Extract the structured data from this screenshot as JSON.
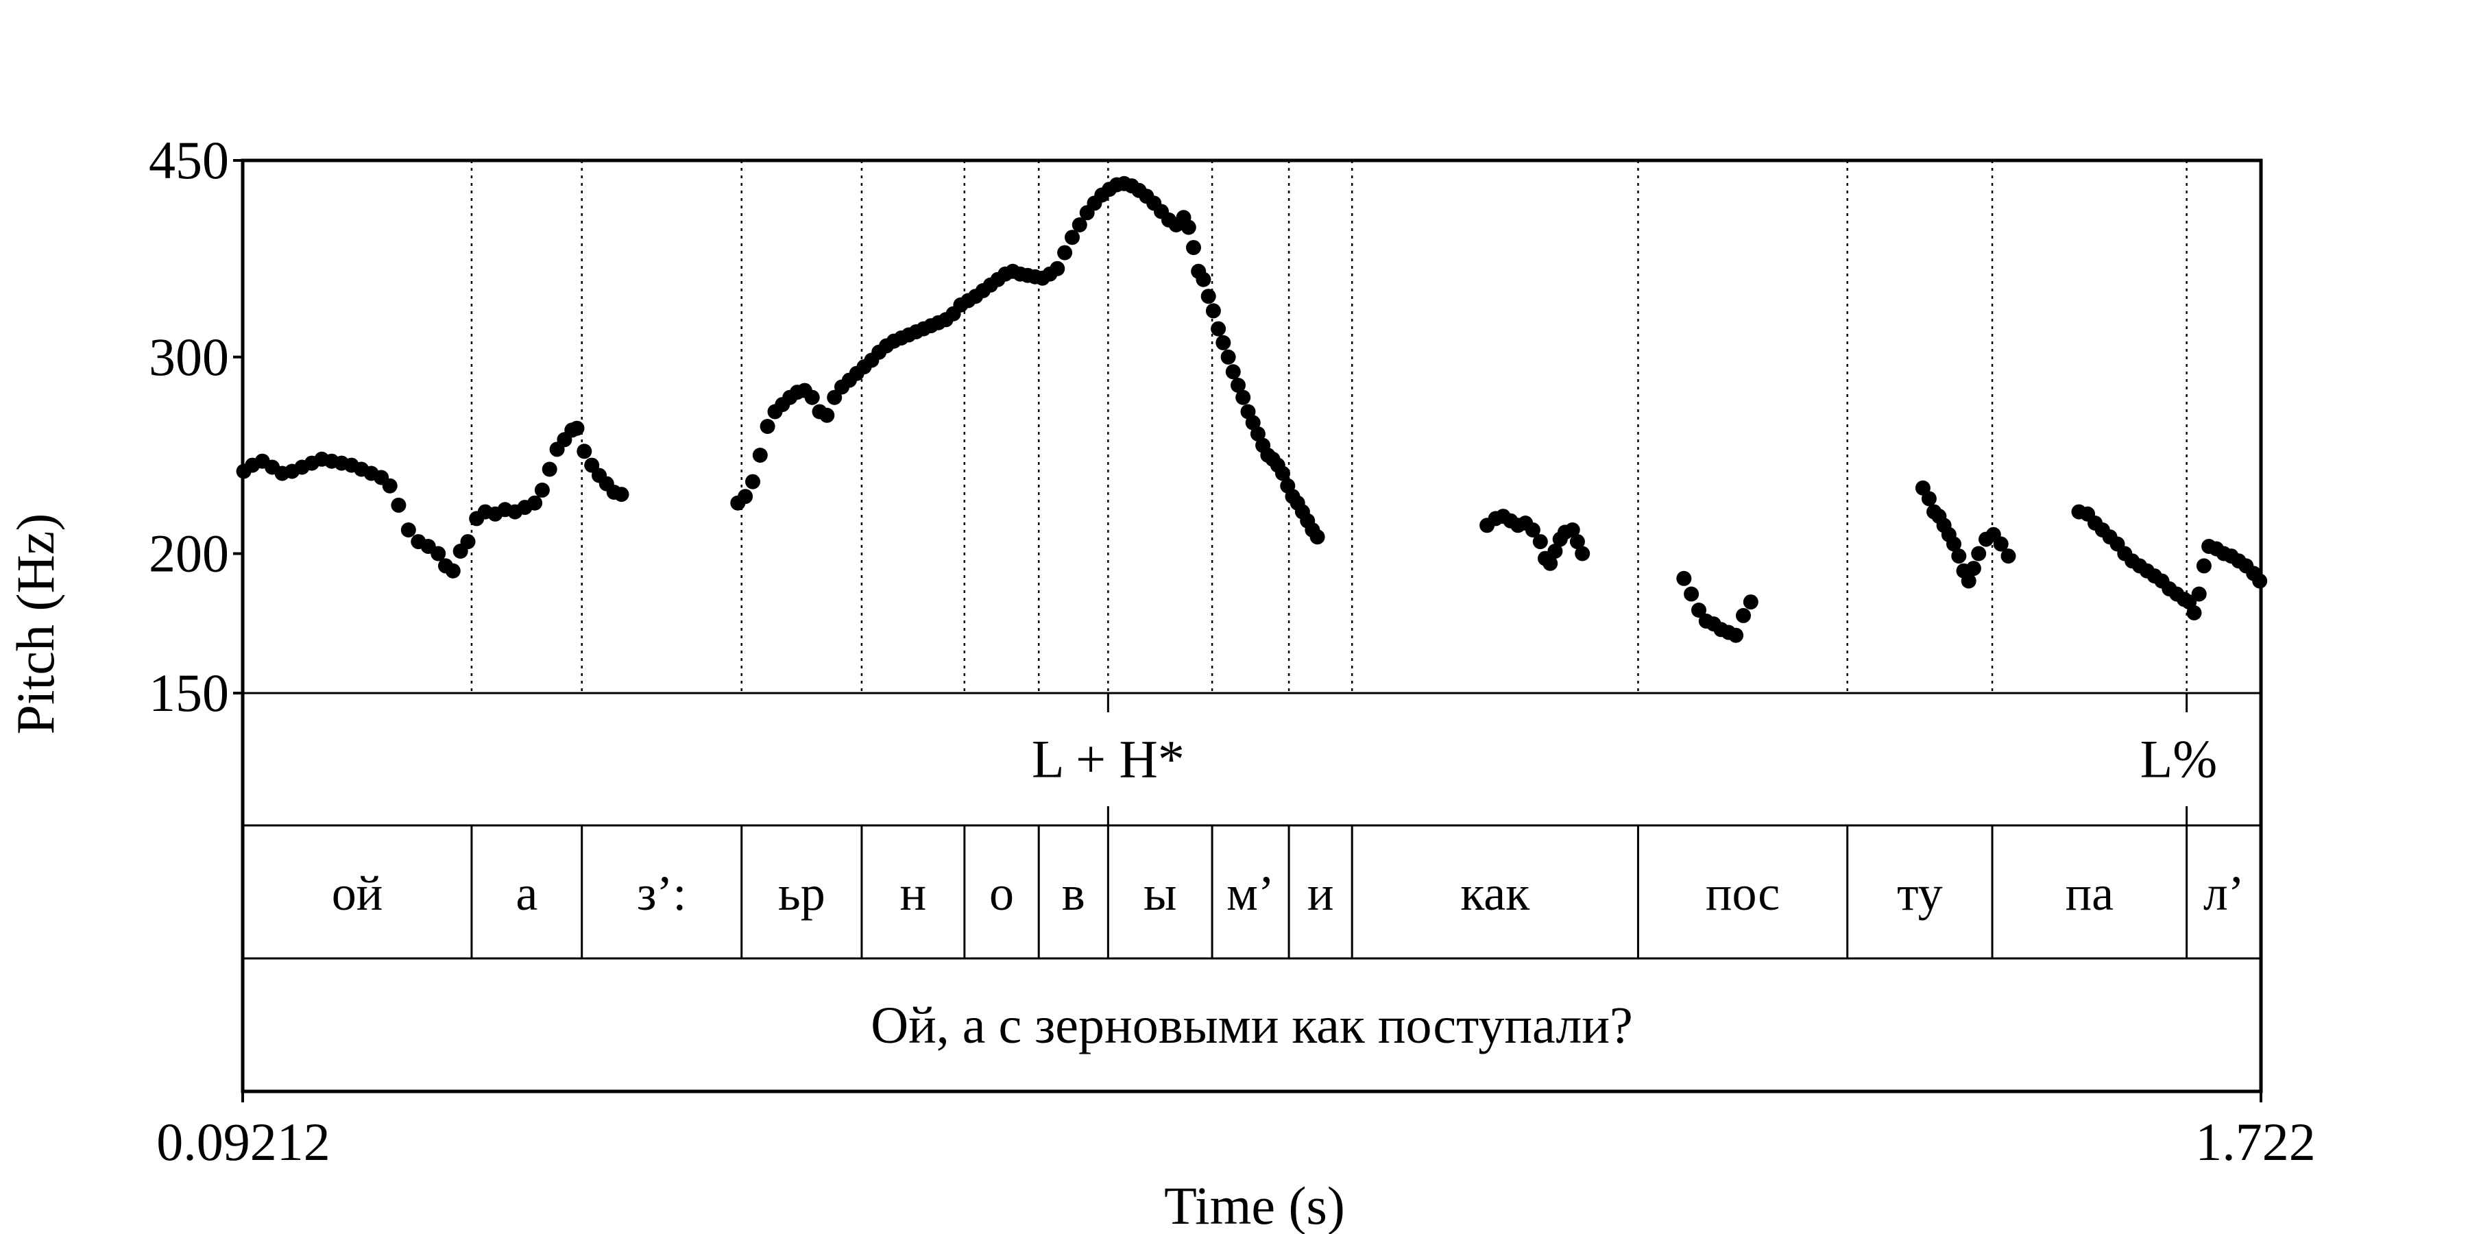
{
  "chart_data": {
    "type": "scatter",
    "xlabel": "Time (s)",
    "ylabel": "Pitch (Hz)",
    "xlim": [
      0.09212,
      1.722
    ],
    "ylim": [
      150,
      450
    ],
    "y_scale": "log",
    "x_tick_labels": [
      "0.09212",
      "1.722"
    ],
    "y_ticks": [
      150,
      200,
      300,
      450
    ],
    "tone_tier": [
      {
        "label": "L + H*",
        "time": 0.791
      },
      {
        "label": "L%",
        "time": 1.662
      }
    ],
    "segment_boundaries": [
      0.277,
      0.366,
      0.495,
      0.592,
      0.675,
      0.735,
      0.791,
      0.875,
      0.937,
      0.988,
      1.219,
      1.388,
      1.505,
      1.662
    ],
    "segments": [
      {
        "label": "ой",
        "start": 0.09212,
        "end": 0.277
      },
      {
        "label": "а",
        "start": 0.277,
        "end": 0.366
      },
      {
        "label": "з’:",
        "start": 0.366,
        "end": 0.495
      },
      {
        "label": "ьр",
        "start": 0.495,
        "end": 0.592
      },
      {
        "label": "н",
        "start": 0.592,
        "end": 0.675
      },
      {
        "label": "о",
        "start": 0.675,
        "end": 0.735
      },
      {
        "label": "в",
        "start": 0.735,
        "end": 0.791
      },
      {
        "label": "ы",
        "start": 0.791,
        "end": 0.875
      },
      {
        "label": "м’",
        "start": 0.875,
        "end": 0.937
      },
      {
        "label": "и",
        "start": 0.937,
        "end": 0.988
      },
      {
        "label": "как",
        "start": 0.988,
        "end": 1.219
      },
      {
        "label": "пос",
        "start": 1.219,
        "end": 1.388
      },
      {
        "label": "ту",
        "start": 1.388,
        "end": 1.505
      },
      {
        "label": "па",
        "start": 1.505,
        "end": 1.662
      },
      {
        "label": "л’",
        "start": 1.662,
        "end": 1.722
      }
    ],
    "sentence": "Ой, а с зерновыми как поступали?",
    "series": [
      {
        "points": [
          [
            0.093,
            237
          ],
          [
            0.1,
            240
          ],
          [
            0.108,
            242
          ],
          [
            0.116,
            239
          ],
          [
            0.124,
            236
          ],
          [
            0.132,
            237
          ],
          [
            0.14,
            239
          ],
          [
            0.148,
            241
          ],
          [
            0.156,
            243
          ],
          [
            0.164,
            242
          ],
          [
            0.172,
            241
          ],
          [
            0.18,
            240
          ],
          [
            0.188,
            238
          ],
          [
            0.196,
            236
          ],
          [
            0.204,
            234
          ],
          [
            0.211,
            230
          ],
          [
            0.218,
            221
          ],
          [
            0.226,
            210
          ],
          [
            0.234,
            205
          ],
          [
            0.242,
            203
          ],
          [
            0.25,
            200
          ],
          [
            0.256,
            195
          ],
          [
            0.262,
            193
          ],
          [
            0.268,
            201
          ],
          [
            0.274,
            205
          ],
          [
            0.281,
            215
          ],
          [
            0.288,
            218
          ],
          [
            0.296,
            217
          ],
          [
            0.304,
            219
          ],
          [
            0.312,
            218
          ],
          [
            0.32,
            220
          ],
          [
            0.328,
            222
          ],
          [
            0.334,
            228
          ],
          [
            0.34,
            238
          ],
          [
            0.346,
            248
          ],
          [
            0.352,
            253
          ],
          [
            0.358,
            258
          ],
          [
            0.362,
            259
          ],
          [
            0.368,
            247
          ],
          [
            0.374,
            240
          ],
          [
            0.38,
            235
          ],
          [
            0.386,
            231
          ],
          [
            0.392,
            227
          ],
          [
            0.398,
            226
          ],
          [
            0.492,
            222
          ],
          [
            0.498,
            225
          ],
          [
            0.504,
            232
          ],
          [
            0.51,
            245
          ],
          [
            0.516,
            260
          ],
          [
            0.522,
            268
          ],
          [
            0.528,
            272
          ],
          [
            0.534,
            276
          ],
          [
            0.54,
            279
          ],
          [
            0.546,
            280
          ],
          [
            0.552,
            276
          ],
          [
            0.558,
            268
          ],
          [
            0.564,
            266
          ],
          [
            0.57,
            276
          ],
          [
            0.576,
            282
          ],
          [
            0.582,
            286
          ],
          [
            0.588,
            290
          ],
          [
            0.594,
            294
          ],
          [
            0.6,
            298
          ],
          [
            0.606,
            303
          ],
          [
            0.612,
            307
          ],
          [
            0.618,
            310
          ],
          [
            0.624,
            312
          ],
          [
            0.63,
            314
          ],
          [
            0.636,
            316
          ],
          [
            0.642,
            318
          ],
          [
            0.648,
            320
          ],
          [
            0.654,
            322
          ],
          [
            0.66,
            324
          ],
          [
            0.666,
            328
          ],
          [
            0.672,
            334
          ],
          [
            0.678,
            337
          ],
          [
            0.684,
            340
          ],
          [
            0.69,
            344
          ],
          [
            0.696,
            348
          ],
          [
            0.702,
            352
          ],
          [
            0.708,
            356
          ],
          [
            0.714,
            358
          ],
          [
            0.72,
            356
          ],
          [
            0.726,
            355
          ],
          [
            0.732,
            354
          ],
          [
            0.738,
            353
          ],
          [
            0.744,
            356
          ],
          [
            0.75,
            360
          ],
          [
            0.756,
            372
          ],
          [
            0.762,
            384
          ],
          [
            0.768,
            394
          ],
          [
            0.774,
            404
          ],
          [
            0.78,
            412
          ],
          [
            0.786,
            419
          ],
          [
            0.792,
            424
          ],
          [
            0.798,
            428
          ],
          [
            0.804,
            429
          ],
          [
            0.81,
            427
          ],
          [
            0.816,
            423
          ],
          [
            0.822,
            418
          ],
          [
            0.828,
            412
          ],
          [
            0.834,
            405
          ],
          [
            0.84,
            398
          ],
          [
            0.846,
            394
          ],
          [
            0.852,
            400
          ],
          [
            0.856,
            392
          ],
          [
            0.86,
            376
          ],
          [
            0.864,
            358
          ],
          [
            0.868,
            352
          ],
          [
            0.872,
            340
          ],
          [
            0.876,
            330
          ],
          [
            0.88,
            318
          ],
          [
            0.884,
            309
          ],
          [
            0.888,
            300
          ],
          [
            0.892,
            291
          ],
          [
            0.896,
            283
          ],
          [
            0.9,
            276
          ],
          [
            0.904,
            268
          ],
          [
            0.908,
            262
          ],
          [
            0.912,
            256
          ],
          [
            0.916,
            250
          ],
          [
            0.92,
            245
          ],
          [
            0.924,
            243
          ],
          [
            0.928,
            240
          ],
          [
            0.932,
            236
          ],
          [
            0.936,
            230
          ],
          [
            0.94,
            225
          ],
          [
            0.944,
            222
          ],
          [
            0.948,
            218
          ],
          [
            0.952,
            214
          ],
          [
            0.956,
            210
          ],
          [
            0.96,
            207
          ],
          [
            1.097,
            212
          ],
          [
            1.104,
            215
          ],
          [
            1.11,
            216
          ],
          [
            1.116,
            214
          ],
          [
            1.122,
            212
          ],
          [
            1.128,
            213
          ],
          [
            1.134,
            210
          ],
          [
            1.14,
            205
          ],
          [
            1.144,
            198
          ],
          [
            1.148,
            196
          ],
          [
            1.152,
            201
          ],
          [
            1.156,
            206
          ],
          [
            1.16,
            209
          ],
          [
            1.166,
            210
          ],
          [
            1.17,
            205
          ],
          [
            1.174,
            200
          ],
          [
            1.256,
            190
          ],
          [
            1.262,
            184
          ],
          [
            1.268,
            178
          ],
          [
            1.274,
            174
          ],
          [
            1.28,
            173
          ],
          [
            1.286,
            171
          ],
          [
            1.292,
            170
          ],
          [
            1.298,
            169
          ],
          [
            1.304,
            176
          ],
          [
            1.31,
            181
          ],
          [
            1.449,
            229
          ],
          [
            1.454,
            224
          ],
          [
            1.458,
            218
          ],
          [
            1.462,
            216
          ],
          [
            1.466,
            212
          ],
          [
            1.47,
            208
          ],
          [
            1.474,
            204
          ],
          [
            1.478,
            199
          ],
          [
            1.482,
            193
          ],
          [
            1.486,
            189
          ],
          [
            1.49,
            194
          ],
          [
            1.494,
            200
          ],
          [
            1.5,
            206
          ],
          [
            1.506,
            208
          ],
          [
            1.512,
            204
          ],
          [
            1.518,
            199
          ],
          [
            1.575,
            218
          ],
          [
            1.582,
            217
          ],
          [
            1.588,
            213
          ],
          [
            1.594,
            210
          ],
          [
            1.6,
            207
          ],
          [
            1.606,
            204
          ],
          [
            1.612,
            200
          ],
          [
            1.618,
            197
          ],
          [
            1.624,
            195
          ],
          [
            1.63,
            193
          ],
          [
            1.636,
            191
          ],
          [
            1.642,
            189
          ],
          [
            1.648,
            186
          ],
          [
            1.654,
            184
          ],
          [
            1.66,
            182
          ],
          [
            1.664,
            181
          ],
          [
            1.668,
            177
          ],
          [
            1.672,
            184
          ],
          [
            1.676,
            195
          ],
          [
            1.68,
            203
          ],
          [
            1.686,
            202
          ],
          [
            1.692,
            200
          ],
          [
            1.698,
            199
          ],
          [
            1.704,
            197
          ],
          [
            1.71,
            195
          ],
          [
            1.716,
            192
          ],
          [
            1.721,
            189
          ]
        ]
      }
    ]
  }
}
